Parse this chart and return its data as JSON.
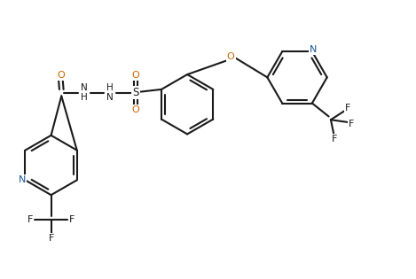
{
  "background_color": "#ffffff",
  "line_color": "#1a1a1a",
  "N_color": "#1a5599",
  "O_color": "#cc6600",
  "font_size": 8.0,
  "line_width": 1.5,
  "figsize": [
    4.69,
    3.15
  ],
  "dpi": 100,
  "xlim": [
    0,
    10
  ],
  "ylim": [
    0,
    6.7
  ]
}
